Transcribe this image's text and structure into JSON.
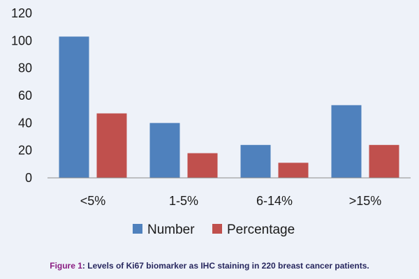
{
  "chart_data": {
    "type": "bar",
    "categories": [
      "<5%",
      "1-5%",
      "6-14%",
      ">15%"
    ],
    "series": [
      {
        "name": "Number",
        "values": [
          103,
          40,
          24,
          53
        ],
        "color": "#4f81bd"
      },
      {
        "name": "Percentage",
        "values": [
          47,
          18,
          11,
          24
        ],
        "color": "#c0504d"
      }
    ],
    "ylim": [
      0,
      120
    ],
    "yticks": [
      0,
      20,
      40,
      60,
      80,
      100,
      120
    ],
    "legend": "bottom",
    "grid": false
  },
  "caption": {
    "label": "Figure 1",
    "text": ": Levels of Ki67 biomarker as IHC staining in 220 breast cancer patients."
  }
}
